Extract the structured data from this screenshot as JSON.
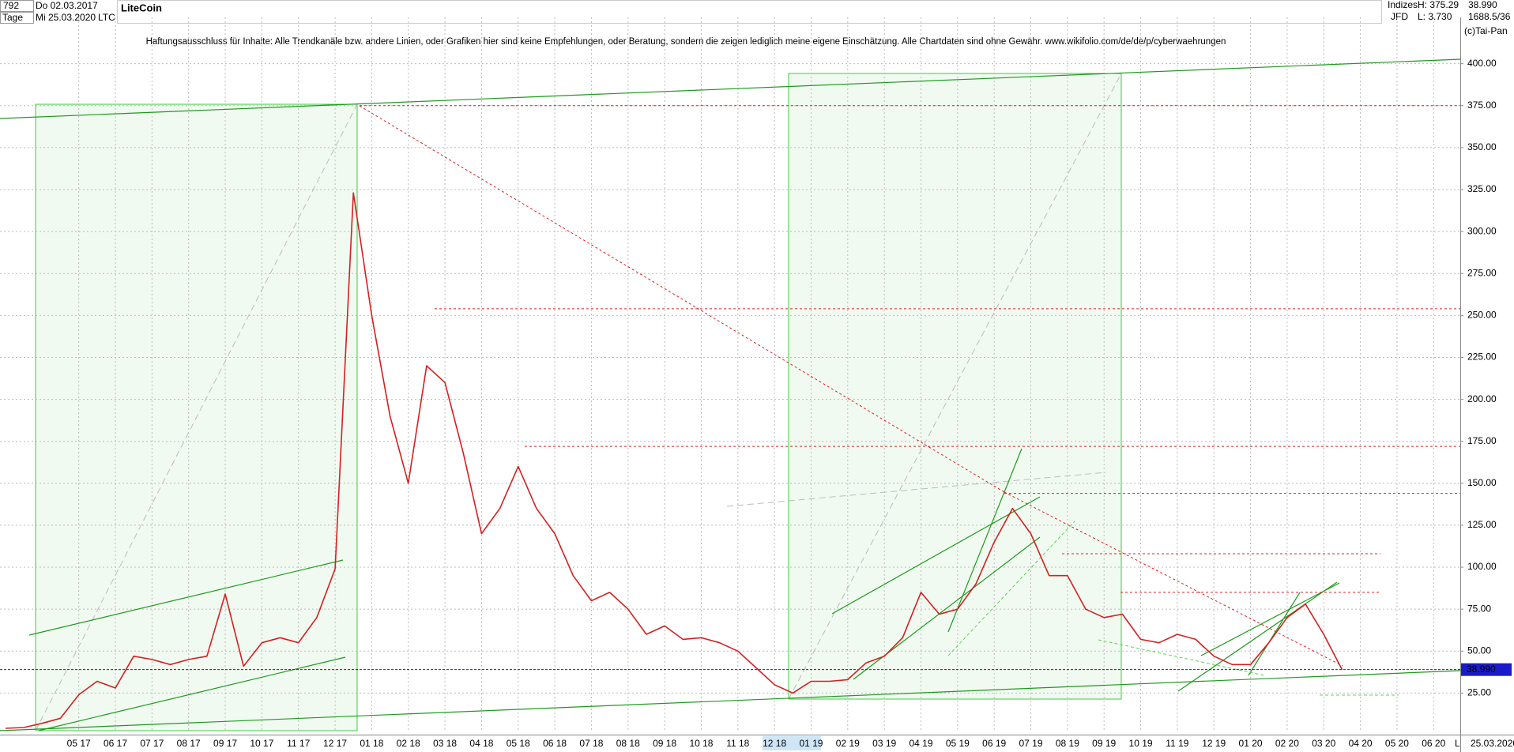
{
  "chart_data": {
    "type": "line",
    "title": "LiteCoin",
    "symbol": "LTC",
    "toolbar": {
      "count": "792",
      "period": "Tage",
      "start_date": "Do 02.03.2017",
      "end_date": "Mi 25.03.2020",
      "group": "Indizes",
      "source": "JFD",
      "high": "H: 375.29",
      "low": "L: 3.730",
      "last": "38.990",
      "info": "1688.5/36",
      "brand": "(c)Tai-Pan"
    },
    "disclaimer": "Haftungsausschluss für Inhalte: Alle Trendkanäle bzw. andere Linien, oder Grafiken hier sind keine Empfehlungen, oder Beratung, sondern die zeigen lediglich meine eigene Einschätzung. Alle Chartdaten sind ohne Gewähr.  www.wikifolio.com/de/de/p/cyberwaehrungen",
    "footer_date": "25.03.2020",
    "footer_scale": "L",
    "categories": [
      null,
      null,
      null,
      null,
      "05 17",
      null,
      "06 17",
      null,
      "07 17",
      null,
      "08 17",
      null,
      "09 17",
      null,
      "10 17",
      null,
      "11 17",
      null,
      "12 17",
      null,
      "01 18",
      null,
      "02 18",
      null,
      "03 18",
      null,
      "04 18",
      null,
      "05 18",
      null,
      "06 18",
      null,
      "07 18",
      null,
      "08 18",
      null,
      "09 18",
      null,
      "10 18",
      null,
      "11 18",
      null,
      "12 18",
      null,
      "01 19",
      null,
      "02 19",
      null,
      "03 19",
      null,
      "04 19",
      null,
      "05 19",
      null,
      "06 19",
      null,
      "07 19",
      null,
      "08 19",
      null,
      "09 19",
      null,
      "10 19",
      null,
      "11 19",
      null,
      "12 19",
      null,
      "01 20",
      null,
      "02 20",
      null,
      "03 20",
      null,
      "04 20",
      null,
      "05 20",
      null,
      "06 20",
      null
    ],
    "series": [
      {
        "name": "LTC",
        "color": "#d42020",
        "values": [
          4,
          4.5,
          7,
          10,
          24,
          32,
          28,
          47,
          45,
          42,
          45,
          47,
          84,
          41,
          55,
          58,
          55,
          70,
          99,
          323,
          250,
          190,
          150,
          220,
          210,
          168,
          120,
          135,
          160,
          135,
          120,
          95,
          80,
          85,
          75,
          60,
          65,
          57,
          58,
          55,
          50,
          40,
          30,
          25,
          32,
          32,
          33,
          43,
          47,
          58,
          85,
          72,
          75,
          90,
          115,
          135,
          120,
          95,
          95,
          75,
          70,
          72,
          57,
          55,
          60,
          57,
          47,
          42,
          42,
          55,
          70,
          78,
          60,
          38.99,
          null,
          null,
          null,
          null,
          null,
          null
        ]
      }
    ],
    "last_price": {
      "value": 38.99,
      "label": "38.990",
      "color": "#1a1acc"
    },
    "levels": [
      375,
      254,
      172,
      144,
      108,
      85
    ],
    "level_color": "#e02020",
    "ylim": [
      2.6,
      427.6
    ],
    "yticks": [
      {
        "value": 25,
        "label": "25.00"
      },
      {
        "value": 50,
        "label": "50.00"
      },
      {
        "value": 75,
        "label": "75.00"
      },
      {
        "value": 100,
        "label": "100.00"
      },
      {
        "value": 125,
        "label": "125.00"
      },
      {
        "value": 150,
        "label": "150.00"
      },
      {
        "value": 175,
        "label": "175.00"
      },
      {
        "value": 200,
        "label": "200.00"
      },
      {
        "value": 225,
        "label": "225.00"
      },
      {
        "value": 250,
        "label": "250.00"
      },
      {
        "value": 275,
        "label": "275.00"
      },
      {
        "value": 300,
        "label": "300.00"
      },
      {
        "value": 325,
        "label": "325.00"
      },
      {
        "value": 350,
        "label": "350.00"
      },
      {
        "value": 375,
        "label": "375.00"
      },
      {
        "value": 400,
        "label": "400.00"
      }
    ],
    "grid": true
  }
}
